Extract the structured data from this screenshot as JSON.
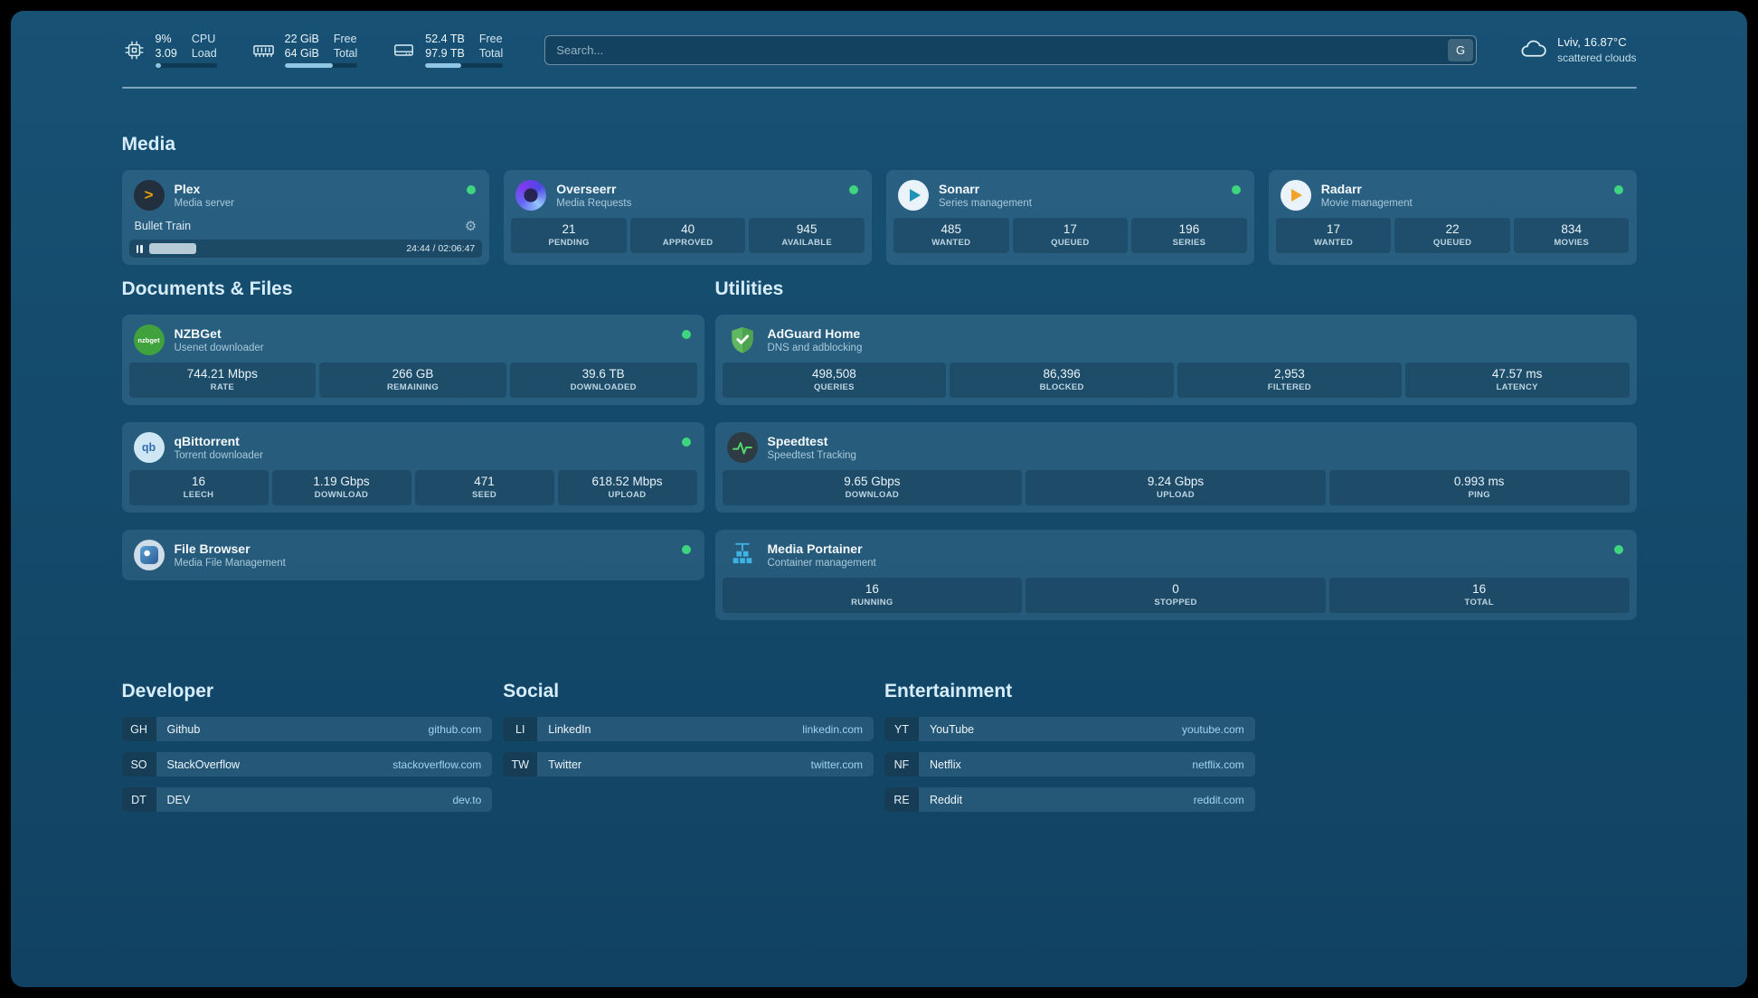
{
  "topbar": {
    "resources": [
      {
        "kind": "cpu",
        "values": [
          "9%",
          "3.09"
        ],
        "labels": [
          "CPU",
          "Load"
        ],
        "percent": 9
      },
      {
        "kind": "memory",
        "values": [
          "22 GiB",
          "64 GiB"
        ],
        "labels": [
          "Free",
          "Total"
        ],
        "percent": 66
      },
      {
        "kind": "disk",
        "values": [
          "52.4 TB",
          "97.9 TB"
        ],
        "labels": [
          "Free",
          "Total"
        ],
        "percent": 46
      }
    ],
    "search": {
      "placeholder": "Search...",
      "button": "G"
    },
    "weather": {
      "location": "Lviv, 16.87°C",
      "condition": "scattered clouds"
    }
  },
  "icons": {
    "plex_glyph": ">",
    "gear_glyph": "⚙",
    "qbittorrent_glyph": "qb",
    "nzbget_glyph": "nzbget"
  },
  "colors": {
    "status_online": "#3fd47f",
    "plex_accent": "#e5a00d",
    "radarr_accent": "#f0a32a",
    "sonarr_accent": "#2193b5",
    "adguard_green": "#5fb760",
    "speedtest_pulse": "#53d86a",
    "portainer_blue": "#3eb2e4"
  },
  "sections": {
    "media": {
      "title": "Media",
      "cards": [
        {
          "name": "Plex",
          "subtitle": "Media server",
          "online": true,
          "player": {
            "track": "Bullet Train",
            "time": "24:44 / 02:06:47",
            "percent": 19
          }
        },
        {
          "name": "Overseerr",
          "subtitle": "Media Requests",
          "online": true,
          "stats": [
            {
              "value": "21",
              "label": "PENDING"
            },
            {
              "value": "40",
              "label": "APPROVED"
            },
            {
              "value": "945",
              "label": "AVAILABLE"
            }
          ]
        },
        {
          "name": "Sonarr",
          "subtitle": "Series management",
          "online": true,
          "stats": [
            {
              "value": "485",
              "label": "WANTED"
            },
            {
              "value": "17",
              "label": "QUEUED"
            },
            {
              "value": "196",
              "label": "SERIES"
            }
          ]
        },
        {
          "name": "Radarr",
          "subtitle": "Movie management",
          "online": true,
          "stats": [
            {
              "value": "17",
              "label": "WANTED"
            },
            {
              "value": "22",
              "label": "QUEUED"
            },
            {
              "value": "834",
              "label": "MOVIES"
            }
          ]
        }
      ]
    },
    "documents": {
      "title": "Documents & Files",
      "cards": [
        {
          "name": "NZBGet",
          "subtitle": "Usenet downloader",
          "online": true,
          "stats": [
            {
              "value": "744.21 Mbps",
              "label": "RATE"
            },
            {
              "value": "266 GB",
              "label": "REMAINING"
            },
            {
              "value": "39.6 TB",
              "label": "DOWNLOADED"
            }
          ]
        },
        {
          "name": "qBittorrent",
          "subtitle": "Torrent downloader",
          "online": true,
          "stats": [
            {
              "value": "16",
              "label": "LEECH"
            },
            {
              "value": "1.19 Gbps",
              "label": "DOWNLOAD"
            },
            {
              "value": "471",
              "label": "SEED"
            },
            {
              "value": "618.52 Mbps",
              "label": "UPLOAD"
            }
          ]
        },
        {
          "name": "File Browser",
          "subtitle": "Media File Management",
          "online": true,
          "stats": []
        }
      ]
    },
    "utilities": {
      "title": "Utilities",
      "cards": [
        {
          "name": "AdGuard Home",
          "subtitle": "DNS and adblocking",
          "online": false,
          "stats": [
            {
              "value": "498,508",
              "label": "QUERIES"
            },
            {
              "value": "86,396",
              "label": "BLOCKED"
            },
            {
              "value": "2,953",
              "label": "FILTERED"
            },
            {
              "value": "47.57 ms",
              "label": "LATENCY"
            }
          ]
        },
        {
          "name": "Speedtest",
          "subtitle": "Speedtest Tracking",
          "online": false,
          "stats": [
            {
              "value": "9.65 Gbps",
              "label": "DOWNLOAD"
            },
            {
              "value": "9.24 Gbps",
              "label": "UPLOAD"
            },
            {
              "value": "0.993 ms",
              "label": "PING"
            }
          ]
        },
        {
          "name": "Media Portainer",
          "subtitle": "Container management",
          "online": true,
          "stats": [
            {
              "value": "16",
              "label": "RUNNING"
            },
            {
              "value": "0",
              "label": "STOPPED"
            },
            {
              "value": "16",
              "label": "TOTAL"
            }
          ]
        }
      ]
    },
    "bookmarks": [
      {
        "title": "Developer",
        "items": [
          {
            "abbr": "GH",
            "name": "Github",
            "domain": "github.com"
          },
          {
            "abbr": "SO",
            "name": "StackOverflow",
            "domain": "stackoverflow.com"
          },
          {
            "abbr": "DT",
            "name": "DEV",
            "domain": "dev.to"
          }
        ]
      },
      {
        "title": "Social",
        "items": [
          {
            "abbr": "LI",
            "name": "LinkedIn",
            "domain": "linkedin.com"
          },
          {
            "abbr": "TW",
            "name": "Twitter",
            "domain": "twitter.com"
          }
        ]
      },
      {
        "title": "Entertainment",
        "items": [
          {
            "abbr": "YT",
            "name": "YouTube",
            "domain": "youtube.com"
          },
          {
            "abbr": "NF",
            "name": "Netflix",
            "domain": "netflix.com"
          },
          {
            "abbr": "RE",
            "name": "Reddit",
            "domain": "reddit.com"
          }
        ]
      }
    ]
  }
}
